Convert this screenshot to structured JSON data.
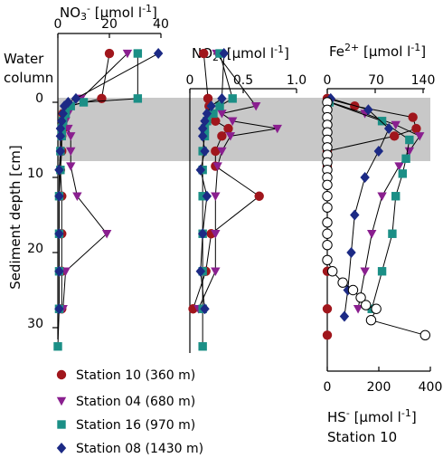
{
  "colors": {
    "station10": "#a0161c",
    "station04": "#8a1f8f",
    "station16": "#1b8f86",
    "station08": "#1c2a85",
    "sediment_band": "#c8c8c8",
    "hs_marker": "#ffffff"
  },
  "labels": {
    "water_column_line1": "Water",
    "water_column_line2": "column",
    "y_axis_title": "Sediment depth [cm]",
    "hs_axis_title": "HS- [µmol l-1]",
    "hs_station": "Station 10"
  },
  "legend": [
    {
      "key": "station10",
      "label": "Station 10 (360 m)",
      "marker": "circle"
    },
    {
      "key": "station04",
      "label": "Station 04 (680 m)",
      "marker": "triangle-down"
    },
    {
      "key": "station16",
      "label": "Station 16 (970 m)",
      "marker": "square"
    },
    {
      "key": "station08",
      "label": "Station 08 (1430 m)",
      "marker": "diamond"
    }
  ],
  "chart_data": [
    {
      "type": "line",
      "xlabel": "NO3- [µmol l-1]",
      "ylabel": "Sediment depth [cm]",
      "x_ticks": [
        0,
        20,
        40
      ],
      "y_ticks": [
        0,
        10,
        20,
        30
      ],
      "xlim": [
        0,
        40
      ],
      "ylim": [
        -7,
        33
      ],
      "series": [
        {
          "name": "Station 10 (360 m)",
          "key": "station10",
          "marker": "circle",
          "points": [
            [
              20,
              -6.5
            ],
            [
              17,
              -0.5
            ],
            [
              4,
              0.5
            ],
            [
              2,
              1.5
            ],
            [
              2,
              2.5
            ],
            [
              2,
              3.5
            ],
            [
              1.5,
              4.5
            ],
            [
              1.5,
              6.5
            ],
            [
              1,
              9
            ],
            [
              1.5,
              12.5
            ],
            [
              1.5,
              17.5
            ],
            [
              1.5,
              22.5
            ],
            [
              1.5,
              27.5
            ]
          ]
        },
        {
          "name": "Station 04 (680 m)",
          "key": "station04",
          "marker": "triangle-down",
          "points": [
            [
              27,
              -6.5
            ],
            [
              9,
              -0.5
            ],
            [
              5,
              0.5
            ],
            [
              4,
              1.5
            ],
            [
              3,
              2.5
            ],
            [
              4,
              3.5
            ],
            [
              5,
              4.5
            ],
            [
              5,
              6.5
            ],
            [
              5,
              8.5
            ],
            [
              7.5,
              12.5
            ],
            [
              19,
              17.5
            ],
            [
              3,
              22.5
            ],
            [
              2,
              27.5
            ]
          ]
        },
        {
          "name": "Station 16 (970 m)",
          "key": "station16",
          "marker": "square",
          "points": [
            [
              31,
              -6.5
            ],
            [
              31,
              -0.5
            ],
            [
              10,
              0
            ],
            [
              5,
              0.5
            ],
            [
              3,
              1.5
            ],
            [
              2,
              2.5
            ],
            [
              1.5,
              3.5
            ],
            [
              1.5,
              4.5
            ],
            [
              1,
              6.5
            ],
            [
              1,
              9
            ],
            [
              0.5,
              12.5
            ],
            [
              0.5,
              17.5
            ],
            [
              0.5,
              22.5
            ],
            [
              0.5,
              27.5
            ],
            [
              0,
              32.5
            ]
          ]
        },
        {
          "name": "Station 08 (1430 m)",
          "key": "station08",
          "marker": "diamond",
          "points": [
            [
              39,
              -6.5
            ],
            [
              7,
              -0.5
            ],
            [
              4,
              0
            ],
            [
              2.5,
              0.5
            ],
            [
              2,
              1.5
            ],
            [
              1.5,
              2.5
            ],
            [
              1,
              3.5
            ],
            [
              1,
              4.5
            ],
            [
              1,
              6.5
            ],
            [
              0.5,
              9
            ],
            [
              0.5,
              12.5
            ],
            [
              0.5,
              17.5
            ],
            [
              0.5,
              22.5
            ],
            [
              0.5,
              27.5
            ]
          ]
        }
      ]
    },
    {
      "type": "line",
      "xlabel": "NO2- [µmol l-1]",
      "x_ticks": [
        0,
        0.5,
        1
      ],
      "x_tick_labels": [
        "0",
        "0.5",
        "1.0"
      ],
      "xlim": [
        0,
        1
      ],
      "ylim": [
        -7,
        33
      ],
      "series": [
        {
          "name": "Station 10 (360 m)",
          "key": "station10",
          "marker": "circle",
          "points": [
            [
              0.13,
              -6.5
            ],
            [
              0.17,
              -0.5
            ],
            [
              0.18,
              0.5
            ],
            [
              0.2,
              1.5
            ],
            [
              0.24,
              2.5
            ],
            [
              0.36,
              3.5
            ],
            [
              0.3,
              4.5
            ],
            [
              0.24,
              6.5
            ],
            [
              0.24,
              8.5
            ],
            [
              0.65,
              12.5
            ],
            [
              0.2,
              17.5
            ],
            [
              0.15,
              22.5
            ],
            [
              0.03,
              27.5
            ]
          ]
        },
        {
          "name": "Station 04 (680 m)",
          "key": "station04",
          "marker": "triangle-down",
          "points": [
            [
              0.25,
              -6.5
            ],
            [
              0.62,
              0.5
            ],
            [
              0.3,
              1.5
            ],
            [
              0.4,
              2.5
            ],
            [
              0.82,
              3.5
            ],
            [
              0.38,
              4.5
            ],
            [
              0.3,
              6.5
            ],
            [
              0.26,
              8.5
            ],
            [
              0.24,
              12.5
            ],
            [
              0.24,
              17.5
            ],
            [
              0.24,
              22.5
            ],
            [
              0.08,
              27.5
            ]
          ]
        },
        {
          "name": "Station 16 (970 m)",
          "key": "station16",
          "marker": "square",
          "points": [
            [
              0.28,
              -6.5
            ],
            [
              0.4,
              -0.5
            ],
            [
              0.28,
              0.5
            ],
            [
              0.22,
              1.5
            ],
            [
              0.16,
              2.5
            ],
            [
              0.14,
              3.5
            ],
            [
              0.14,
              4.5
            ],
            [
              0.12,
              6.5
            ],
            [
              0.12,
              9
            ],
            [
              0.12,
              12.5
            ],
            [
              0.12,
              17.5
            ],
            [
              0.12,
              22.5
            ],
            [
              0.12,
              27.5
            ],
            [
              0.12,
              32.5
            ]
          ]
        },
        {
          "name": "Station 08 (1430 m)",
          "key": "station08",
          "marker": "diamond",
          "points": [
            [
              0.32,
              -6.5
            ],
            [
              0.3,
              -0.5
            ],
            [
              0.2,
              0.5
            ],
            [
              0.16,
              1.5
            ],
            [
              0.14,
              2.5
            ],
            [
              0.12,
              3.5
            ],
            [
              0.12,
              4.5
            ],
            [
              0.14,
              6.5
            ],
            [
              0.1,
              9
            ],
            [
              0.16,
              12.5
            ],
            [
              0.12,
              17.5
            ],
            [
              0.1,
              22.5
            ],
            [
              0.14,
              27.5
            ]
          ]
        }
      ]
    },
    {
      "type": "line",
      "xlabel": "Fe2+ [µmol l-1]",
      "x_ticks": [
        0,
        70,
        140
      ],
      "xlim": [
        0,
        140
      ],
      "ylim": [
        -7,
        33
      ],
      "series": [
        {
          "name": "Station 10 (360 m)",
          "key": "station10",
          "marker": "circle",
          "points": [
            [
              0,
              -0.5
            ],
            [
              40,
              0.5
            ],
            [
              125,
              2
            ],
            [
              130,
              3.5
            ],
            [
              98,
              4.5
            ],
            [
              0,
              6.5
            ],
            [
              0,
              8.5
            ],
            [
              0,
              12.5
            ],
            [
              0,
              17.5
            ],
            [
              0,
              22.5
            ],
            [
              0,
              27.5
            ],
            [
              0,
              31
            ]
          ]
        },
        {
          "name": "Station 04 (680 m)",
          "key": "station04",
          "marker": "triangle-down",
          "points": [
            [
              5,
              0
            ],
            [
              55,
              1.5
            ],
            [
              100,
              3
            ],
            [
              135,
              4.5
            ],
            [
              120,
              6.5
            ],
            [
              105,
              8.5
            ],
            [
              80,
              12.5
            ],
            [
              65,
              17.5
            ],
            [
              55,
              22.5
            ],
            [
              45,
              27.5
            ]
          ]
        },
        {
          "name": "Station 16 (970 m)",
          "key": "station16",
          "marker": "square",
          "points": [
            [
              3,
              0
            ],
            [
              80,
              2.5
            ],
            [
              120,
              5
            ],
            [
              115,
              7.5
            ],
            [
              110,
              9.5
            ],
            [
              100,
              12.5
            ],
            [
              95,
              17.5
            ],
            [
              80,
              22.5
            ],
            [
              65,
              27.5
            ]
          ]
        },
        {
          "name": "Station 08 (1430 m)",
          "key": "station08",
          "marker": "diamond",
          "points": [
            [
              5,
              -0.5
            ],
            [
              60,
              1
            ],
            [
              90,
              3.5
            ],
            [
              75,
              6.5
            ],
            [
              55,
              10
            ],
            [
              40,
              15
            ],
            [
              35,
              20
            ],
            [
              30,
              25
            ],
            [
              25,
              28.5
            ]
          ]
        }
      ]
    },
    {
      "type": "line",
      "xlabel": "HS- [µmol l-1]",
      "subtitle": "Station 10",
      "x_ticks": [
        0,
        200,
        400
      ],
      "xlim": [
        0,
        400
      ],
      "ylim": [
        -7,
        33
      ],
      "series": [
        {
          "name": "HS- Station 10",
          "key": "hs",
          "marker": "circle-open",
          "points": [
            [
              0,
              0
            ],
            [
              0,
              1
            ],
            [
              0,
              2
            ],
            [
              0,
              3
            ],
            [
              0,
              4
            ],
            [
              0,
              5
            ],
            [
              0,
              6
            ],
            [
              0,
              7
            ],
            [
              0,
              8
            ],
            [
              0,
              9
            ],
            [
              0,
              10
            ],
            [
              0,
              11
            ],
            [
              0,
              12.5
            ],
            [
              0,
              14
            ],
            [
              0,
              16
            ],
            [
              0,
              17.5
            ],
            [
              0,
              19
            ],
            [
              0,
              21
            ],
            [
              20,
              22.5
            ],
            [
              60,
              24
            ],
            [
              100,
              25
            ],
            [
              130,
              26
            ],
            [
              150,
              27
            ],
            [
              190,
              27.5
            ],
            [
              170,
              29
            ],
            [
              380,
              31
            ]
          ]
        }
      ]
    }
  ]
}
